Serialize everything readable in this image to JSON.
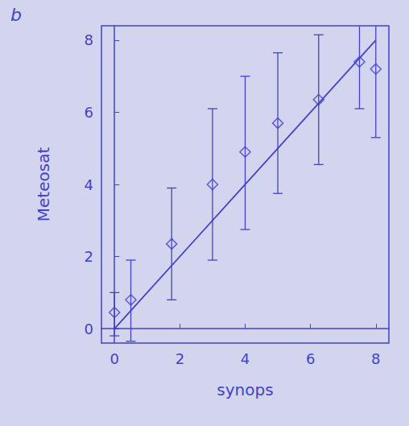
{
  "chart_data": {
    "type": "scatter",
    "title": "b",
    "x_label": "synops",
    "y_label": "Meteosat",
    "color": "#4343c4",
    "xlim": [
      -0.4,
      8.4
    ],
    "xticks": [
      0,
      2,
      4,
      6,
      8
    ],
    "ylim": [
      -0.4,
      8.4
    ],
    "yticks": [
      0,
      2,
      4,
      6,
      8
    ],
    "grid": false,
    "series": [
      {
        "type": "scatter",
        "marker": "diamond",
        "x": [
          0,
          0.5,
          1.75,
          3,
          4,
          5,
          6.25,
          7.5,
          8
        ],
        "values": [
          0.45,
          0.8,
          2.35,
          4.0,
          4.9,
          5.7,
          6.35,
          7.4,
          7.2
        ],
        "y_lower": [
          -0.2,
          -0.35,
          0.8,
          1.9,
          2.75,
          3.75,
          4.55,
          6.1,
          5.3
        ],
        "y_upper": [
          1.0,
          1.9,
          3.9,
          6.1,
          7.0,
          7.65,
          8.15,
          8.7,
          8.7
        ]
      },
      {
        "type": "line",
        "line_style": "solid",
        "x": [
          0,
          8
        ],
        "values": [
          0,
          8
        ]
      }
    ]
  }
}
